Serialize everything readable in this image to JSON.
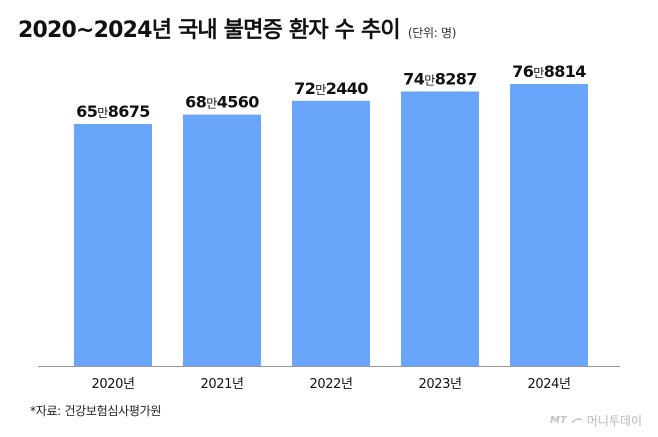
{
  "header": {
    "title": "2020~2024년 국내 불면증 환자 수 추이",
    "unit": "(단위: 명)"
  },
  "chart_data": {
    "type": "bar",
    "categories": [
      "2020년",
      "2021년",
      "2022년",
      "2023년",
      "2024년"
    ],
    "values": [
      658675,
      684560,
      722440,
      748287,
      768814
    ],
    "value_labels": [
      {
        "prefix": "65",
        "mid": "만",
        "suffix": "8675"
      },
      {
        "prefix": "68",
        "mid": "만",
        "suffix": "4560"
      },
      {
        "prefix": "72",
        "mid": "만",
        "suffix": "2440"
      },
      {
        "prefix": "74",
        "mid": "만",
        "suffix": "8287"
      },
      {
        "prefix": "76",
        "mid": "만",
        "suffix": "8814"
      }
    ],
    "title": "2020~2024년 국내 불면증 환자 수 추이",
    "xlabel": "",
    "ylabel": "",
    "grid": false,
    "legend": "none",
    "bar_color": "#6aa5fc",
    "axis_color": "#999999"
  },
  "footer": {
    "source": "*자료: 건강보험심사평가원",
    "watermark_prefix": "MT",
    "watermark_text": "머니투데이"
  }
}
